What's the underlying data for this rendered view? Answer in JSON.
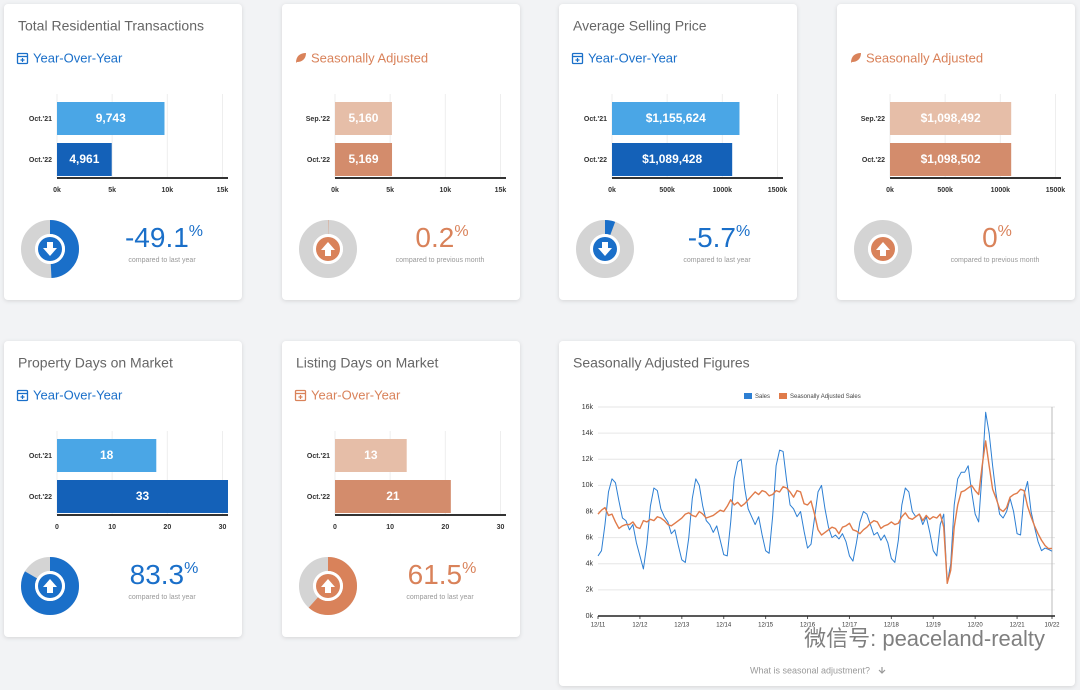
{
  "cards": [
    {
      "title": "Total Residential Transactions",
      "subtitle": "Year-Over-Year",
      "icon": "calendar",
      "color": "#1a6fc9",
      "chart_data": {
        "type": "bar",
        "categories": [
          "Oct.'21",
          "Oct.'22"
        ],
        "values": [
          9743,
          4961
        ],
        "value_labels": [
          "9,743",
          "4,961"
        ],
        "colors": [
          "#4aa6e6",
          "#1461b8"
        ],
        "xlim": [
          0,
          15500
        ],
        "xticks": [
          {
            "value": 0,
            "label": "0k"
          },
          {
            "value": 5000,
            "label": "5k"
          },
          {
            "value": 10000,
            "label": "10k"
          },
          {
            "value": 15000,
            "label": "15k"
          }
        ]
      },
      "change": {
        "value": -49.1,
        "symbol": "%",
        "caption": "compared to last year"
      }
    },
    {
      "subtitle": "Seasonally Adjusted",
      "icon": "leaf",
      "color": "#d9825a",
      "chart_data": {
        "type": "bar",
        "categories": [
          "Sep.'22",
          "Oct.'22"
        ],
        "values": [
          5160,
          5169
        ],
        "value_labels": [
          "5,160",
          "5,169"
        ],
        "colors": [
          "#e6bea8",
          "#d38c6c"
        ],
        "xlim": [
          0,
          15500
        ],
        "xticks": [
          {
            "value": 0,
            "label": "0k"
          },
          {
            "value": 5000,
            "label": "5k"
          },
          {
            "value": 10000,
            "label": "10k"
          },
          {
            "value": 15000,
            "label": "15k"
          }
        ]
      },
      "change": {
        "value": 0.2,
        "symbol": "%",
        "caption": "compared to previous month"
      }
    },
    {
      "title": "Average Selling Price",
      "subtitle": "Year-Over-Year",
      "icon": "calendar",
      "color": "#1a6fc9",
      "chart_data": {
        "type": "bar",
        "categories": [
          "Oct.'21",
          "Oct.'22"
        ],
        "values": [
          1155624,
          1089428
        ],
        "value_labels": [
          "$1,155,624",
          "$1,089,428"
        ],
        "colors": [
          "#4aa6e6",
          "#1461b8"
        ],
        "xlim": [
          0,
          1550000
        ],
        "xticks": [
          {
            "value": 0,
            "label": "0k"
          },
          {
            "value": 500000,
            "label": "500k"
          },
          {
            "value": 1000000,
            "label": "1000k"
          },
          {
            "value": 1500000,
            "label": "1500k"
          }
        ]
      },
      "change": {
        "value": -5.7,
        "symbol": "%",
        "caption": "compared to last year"
      }
    },
    {
      "subtitle": "Seasonally Adjusted",
      "icon": "leaf",
      "color": "#d9825a",
      "chart_data": {
        "type": "bar",
        "categories": [
          "Sep.'22",
          "Oct.'22"
        ],
        "values": [
          1098492,
          1098502
        ],
        "value_labels": [
          "$1,098,492",
          "$1,098,502"
        ],
        "colors": [
          "#e6bea8",
          "#d38c6c"
        ],
        "xlim": [
          0,
          1550000
        ],
        "xticks": [
          {
            "value": 0,
            "label": "0k"
          },
          {
            "value": 500000,
            "label": "500k"
          },
          {
            "value": 1000000,
            "label": "1000k"
          },
          {
            "value": 1500000,
            "label": "1500k"
          }
        ]
      },
      "change": {
        "value": 0,
        "symbol": "%",
        "caption": "compared to previous month"
      }
    },
    {
      "title": "Property Days on Market",
      "subtitle": "Year-Over-Year",
      "icon": "calendar",
      "color": "#1a6fc9",
      "chart_data": {
        "type": "bar",
        "categories": [
          "Oct.'21",
          "Oct.'22"
        ],
        "values": [
          18,
          33
        ],
        "colors": [
          "#4aa6e6",
          "#1461b8"
        ],
        "xlim": [
          0,
          31
        ],
        "xticks": [
          0,
          10,
          20,
          30
        ]
      },
      "change": {
        "value": 83.3,
        "symbol": "%",
        "caption": "compared to last year"
      }
    },
    {
      "title": "Listing Days on Market",
      "subtitle": "Year-Over-Year",
      "icon": "calendar",
      "color": "#d9825a",
      "chart_data": {
        "type": "bar",
        "categories": [
          "Oct.'21",
          "Oct.'22"
        ],
        "values": [
          13,
          21
        ],
        "colors": [
          "#e6bea8",
          "#d38c6c"
        ],
        "xlim": [
          0,
          31
        ],
        "xticks": [
          0,
          10,
          20,
          30
        ]
      },
      "change": {
        "value": 61.5,
        "symbol": "%",
        "caption": "compared to last year"
      }
    }
  ],
  "line_card": {
    "title": "Seasonally Adjusted Figures",
    "footer": "What is seasonal adjustment?",
    "watermark": "微信号: peaceland-realty",
    "chart_data": {
      "type": "line",
      "legend": "top",
      "xlim": [
        0,
        130
      ],
      "xticks": [
        {
          "value": 0,
          "label": "12/11"
        },
        {
          "value": 12,
          "label": "12/12"
        },
        {
          "value": 24,
          "label": "12/13"
        },
        {
          "value": 36,
          "label": "12/14"
        },
        {
          "value": 48,
          "label": "12/15"
        },
        {
          "value": 60,
          "label": "12/16"
        },
        {
          "value": 72,
          "label": "12/17"
        },
        {
          "value": 84,
          "label": "12/18"
        },
        {
          "value": 96,
          "label": "12/19"
        },
        {
          "value": 108,
          "label": "12/20"
        },
        {
          "value": 120,
          "label": "12/21"
        },
        {
          "value": 130,
          "label": "10/22"
        }
      ],
      "ylim": [
        0,
        16000
      ],
      "yticks": [
        {
          "value": 0,
          "label": "0k"
        },
        {
          "value": 2000,
          "label": "2k"
        },
        {
          "value": 4000,
          "label": "4k"
        },
        {
          "value": 6000,
          "label": "6k"
        },
        {
          "value": 8000,
          "label": "8k"
        },
        {
          "value": 10000,
          "label": "10k"
        },
        {
          "value": 12000,
          "label": "12k"
        },
        {
          "value": 14000,
          "label": "14k"
        },
        {
          "value": 16000,
          "label": "16k"
        }
      ],
      "grid": true,
      "series": [
        {
          "name": "Sales",
          "color": "#2d7fd3",
          "values": [
            4600,
            5000,
            7000,
            9500,
            10500,
            10200,
            8800,
            7500,
            7300,
            6600,
            7000,
            5600,
            4600,
            3600,
            5500,
            8400,
            9800,
            9600,
            8200,
            7600,
            7200,
            6300,
            6600,
            5400,
            4300,
            4100,
            6000,
            9000,
            10500,
            10000,
            8400,
            7300,
            7000,
            6400,
            6900,
            5800,
            4700,
            4600,
            7200,
            10500,
            11800,
            12000,
            9800,
            8200,
            7600,
            7000,
            7600,
            6200,
            5000,
            4800,
            7600,
            11500,
            12700,
            12600,
            10400,
            8500,
            8200,
            7600,
            8000,
            6500,
            5200,
            5500,
            7500,
            9500,
            10000,
            8200,
            6800,
            6000,
            6200,
            5900,
            6300,
            5700,
            4600,
            4200,
            5600,
            7200,
            8000,
            7800,
            7000,
            6200,
            6400,
            5800,
            6200,
            5600,
            4400,
            4100,
            5800,
            8500,
            9800,
            9500,
            8000,
            7600,
            7800,
            7000,
            7600,
            6400,
            5000,
            4600,
            7000,
            7800,
            2500,
            4000,
            8500,
            10500,
            11000,
            11000,
            11500,
            9500,
            7800,
            7200,
            11000,
            15600,
            14000,
            11500,
            9300,
            7800,
            7500,
            8000,
            9000,
            8000,
            6300,
            6200,
            9300,
            10300,
            8000,
            6800,
            5700,
            5000,
            5200,
            5100,
            4961
          ]
        },
        {
          "name": "Seasonally Adjusted Sales",
          "color": "#e07b4a",
          "values": [
            7800,
            8100,
            8300,
            7700,
            7800,
            7200,
            6700,
            6900,
            7000,
            7000,
            7200,
            6800,
            6700,
            7300,
            7200,
            7400,
            7300,
            7600,
            7500,
            7300,
            7000,
            6900,
            7100,
            7300,
            7500,
            7800,
            7900,
            7700,
            7600,
            8000,
            7800,
            7500,
            7600,
            7700,
            7900,
            8100,
            8000,
            8400,
            8900,
            8500,
            8700,
            8400,
            8600,
            8900,
            9200,
            9500,
            9300,
            9600,
            9500,
            9200,
            9300,
            9600,
            9500,
            9900,
            9800,
            9500,
            9100,
            9600,
            9500,
            8600,
            8500,
            8800,
            7800,
            6600,
            6200,
            6400,
            6600,
            6800,
            6700,
            6300,
            6800,
            6900,
            7100,
            6600,
            6500,
            6300,
            6600,
            6800,
            7100,
            7300,
            7200,
            6700,
            6900,
            7000,
            7200,
            7000,
            7100,
            7600,
            7900,
            7500,
            7400,
            7600,
            7800,
            7300,
            7700,
            7400,
            7600,
            7500,
            7800,
            6800,
            2500,
            3500,
            6800,
            8500,
            9500,
            9600,
            9800,
            10000,
            9600,
            9300,
            11500,
            13400,
            11500,
            9700,
            9000,
            8200,
            8000,
            8300,
            9100,
            9300,
            9400,
            9700,
            9600,
            8400,
            7600,
            6900,
            6300,
            5800,
            5400,
            5160,
            5169
          ]
        }
      ]
    }
  }
}
